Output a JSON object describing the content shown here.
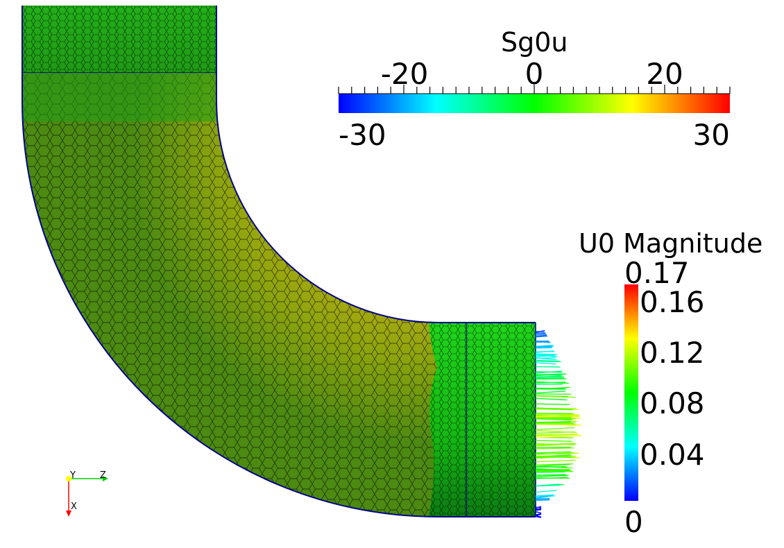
{
  "sg_legend": {
    "title": "Sg0u",
    "min_label": "-30",
    "max_label": "30",
    "range": [
      -30,
      30
    ],
    "ticks": [
      {
        "value": -20,
        "label": "-20"
      },
      {
        "value": 0,
        "label": "0"
      },
      {
        "value": 20,
        "label": "20"
      }
    ],
    "colormap": [
      "#0000ff",
      "#00ffff",
      "#00ff00",
      "#ffff00",
      "#ff0000"
    ]
  },
  "u_legend": {
    "title": "U0 Magnitude",
    "max_label": "0.17",
    "min_label": "0",
    "range": [
      0,
      0.17
    ],
    "ticks": [
      {
        "value": 0.16,
        "label": "0.16"
      },
      {
        "value": 0.12,
        "label": "0.12"
      },
      {
        "value": 0.08,
        "label": "0.08"
      },
      {
        "value": 0.04,
        "label": "0.04"
      }
    ],
    "colormap": [
      "#0000ff",
      "#00ffff",
      "#00ff00",
      "#ffff00",
      "#ff0000"
    ]
  },
  "orientation_axes": {
    "labels": {
      "y": "Y",
      "z": "Z",
      "x": "X"
    },
    "colors": {
      "y": "#ffff00",
      "z": "#00cc00",
      "x": "#ff0000"
    }
  },
  "mesh": {
    "edge_color": "#000000",
    "outline_color": "#00008b"
  }
}
